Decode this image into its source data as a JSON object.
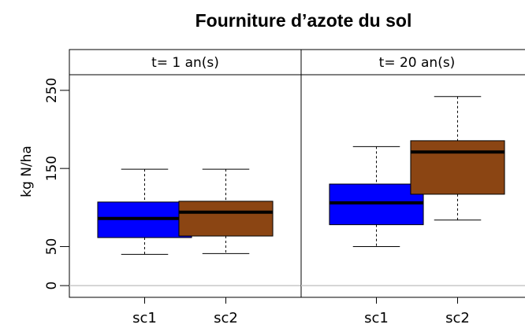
{
  "chart_data": {
    "type": "box",
    "title": "Fourniture d’azote du sol",
    "ylabel": "kg N/ha",
    "ylim": [
      -15,
      270
    ],
    "yticks": [
      0,
      50,
      150,
      250
    ],
    "panels": [
      {
        "title": "t= 1 an(s)",
        "categories": [
          "sc1",
          "sc2"
        ],
        "colors": [
          "#0000ff",
          "#8b4513"
        ],
        "boxes": [
          {
            "whislo": 40,
            "q1": 61.5,
            "median": 86,
            "q3": 107,
            "whishi": 149
          },
          {
            "whislo": 41,
            "q1": 63.5,
            "median": 94,
            "q3": 108,
            "whishi": 149
          }
        ]
      },
      {
        "title": "t= 20 an(s)",
        "categories": [
          "sc1",
          "sc2"
        ],
        "colors": [
          "#0000ff",
          "#8b4513"
        ],
        "boxes": [
          {
            "whislo": 50,
            "q1": 78,
            "median": 106,
            "q3": 130,
            "whishi": 178
          },
          {
            "whislo": 84,
            "q1": 117,
            "median": 171,
            "q3": 185.5,
            "whishi": 242
          }
        ]
      }
    ]
  }
}
